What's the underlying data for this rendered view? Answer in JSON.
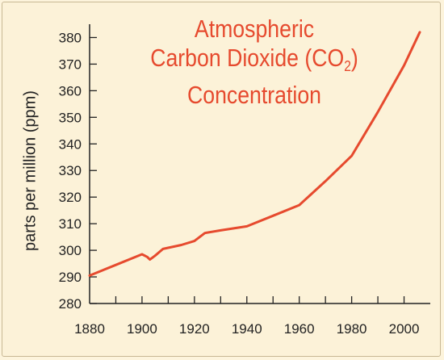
{
  "chart_data": {
    "type": "line",
    "title_lines": [
      "Atmospheric",
      "Carbon Dioxide (CO",
      ") ",
      "Concentration"
    ],
    "title_sub": "2",
    "ylabel": "parts per million (ppm)",
    "xlabel": "",
    "x_ticks": [
      1880,
      1900,
      1920,
      1940,
      1960,
      1980,
      2000
    ],
    "y_ticks": [
      280,
      290,
      300,
      310,
      320,
      330,
      340,
      350,
      360,
      370,
      380
    ],
    "xlim": [
      1880,
      2010
    ],
    "ylim": [
      280,
      385
    ],
    "grid": false,
    "colors": {
      "line": "#e64a2e",
      "axis": "#222222",
      "title": "#e64a2e"
    },
    "series": [
      {
        "x": [
          1880,
          1890,
          1900,
          1902,
          1903,
          1905,
          1908,
          1915,
          1920,
          1924,
          1930,
          1940,
          1950,
          1960,
          1970,
          1980,
          1990,
          2000,
          2006
        ],
        "values": [
          290.5,
          294.5,
          298.5,
          297.5,
          296.5,
          298.0,
          300.5,
          302.0,
          303.5,
          306.5,
          307.5,
          309.0,
          313.0,
          317.0,
          326.0,
          335.5,
          352.0,
          369.5,
          382.0
        ]
      }
    ]
  }
}
